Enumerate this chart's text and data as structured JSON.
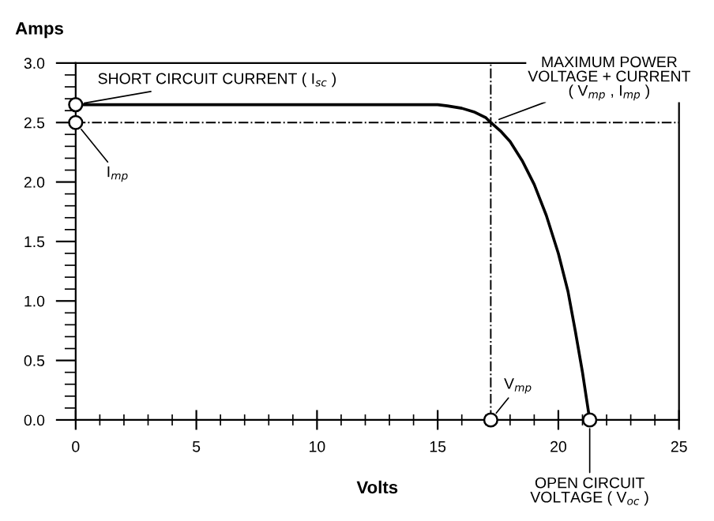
{
  "chart_data": {
    "type": "line",
    "xlabel": "Volts",
    "ylabel": "Amps",
    "series": [
      {
        "color": "#000000",
        "x": [
          0,
          5,
          10,
          15,
          15.4,
          16,
          16.5,
          17,
          17.2,
          17.6,
          18,
          18.5,
          19,
          19.5,
          20,
          20.4,
          20.7,
          21,
          21.3
        ],
        "values": [
          2.65,
          2.65,
          2.65,
          2.65,
          2.64,
          2.62,
          2.59,
          2.54,
          2.5,
          2.43,
          2.34,
          2.18,
          1.98,
          1.72,
          1.4,
          1.08,
          0.75,
          0.4,
          0
        ]
      },
      {
        "type": "scatter",
        "color": "#000000",
        "marker": "circle",
        "x": [
          0,
          0,
          17.2,
          21.3
        ],
        "values": [
          2.65,
          2.5,
          0,
          0
        ]
      }
    ],
    "ref_lines": [
      {
        "axis": "y",
        "value": 2.5,
        "color": "#000000",
        "line_style": "dashdot"
      },
      {
        "axis": "x",
        "value": 17.2,
        "color": "#000000",
        "line_style": "dashdot"
      }
    ],
    "annotations": [
      {
        "text": "SHORT CIRCUIT CURRENT ( I$_{sc}$ )",
        "x": 0,
        "y": 2.65
      },
      {
        "text": "I$_{mp}$",
        "x": 0,
        "y": 2.5
      },
      {
        "text": "MAXIMUM POWER\nVOLTAGE + CURRENT\n( V$_{mp}$ , I$_{mp}$ )",
        "x": 17.2,
        "y": 2.5
      },
      {
        "text": "V$_{mp}$",
        "x": 17.2,
        "y": 0
      },
      {
        "text": "OPEN CIRCUIT\nVOLTAGE ( V$_{oc}$ )",
        "x": 21.3,
        "y": 0
      }
    ],
    "xlim": [
      0,
      25
    ],
    "ylim": [
      0,
      3
    ],
    "xticks": [
      0,
      5,
      10,
      15,
      20,
      25
    ],
    "yticks": [
      {
        "value": 0,
        "label": "0.0"
      },
      0.5,
      {
        "value": 1,
        "label": "1.0"
      },
      1.5,
      {
        "value": 2,
        "label": "2.0"
      },
      2.5,
      {
        "value": 3,
        "label": "3.0"
      }
    ],
    "grid": false,
    "legend": false
  }
}
